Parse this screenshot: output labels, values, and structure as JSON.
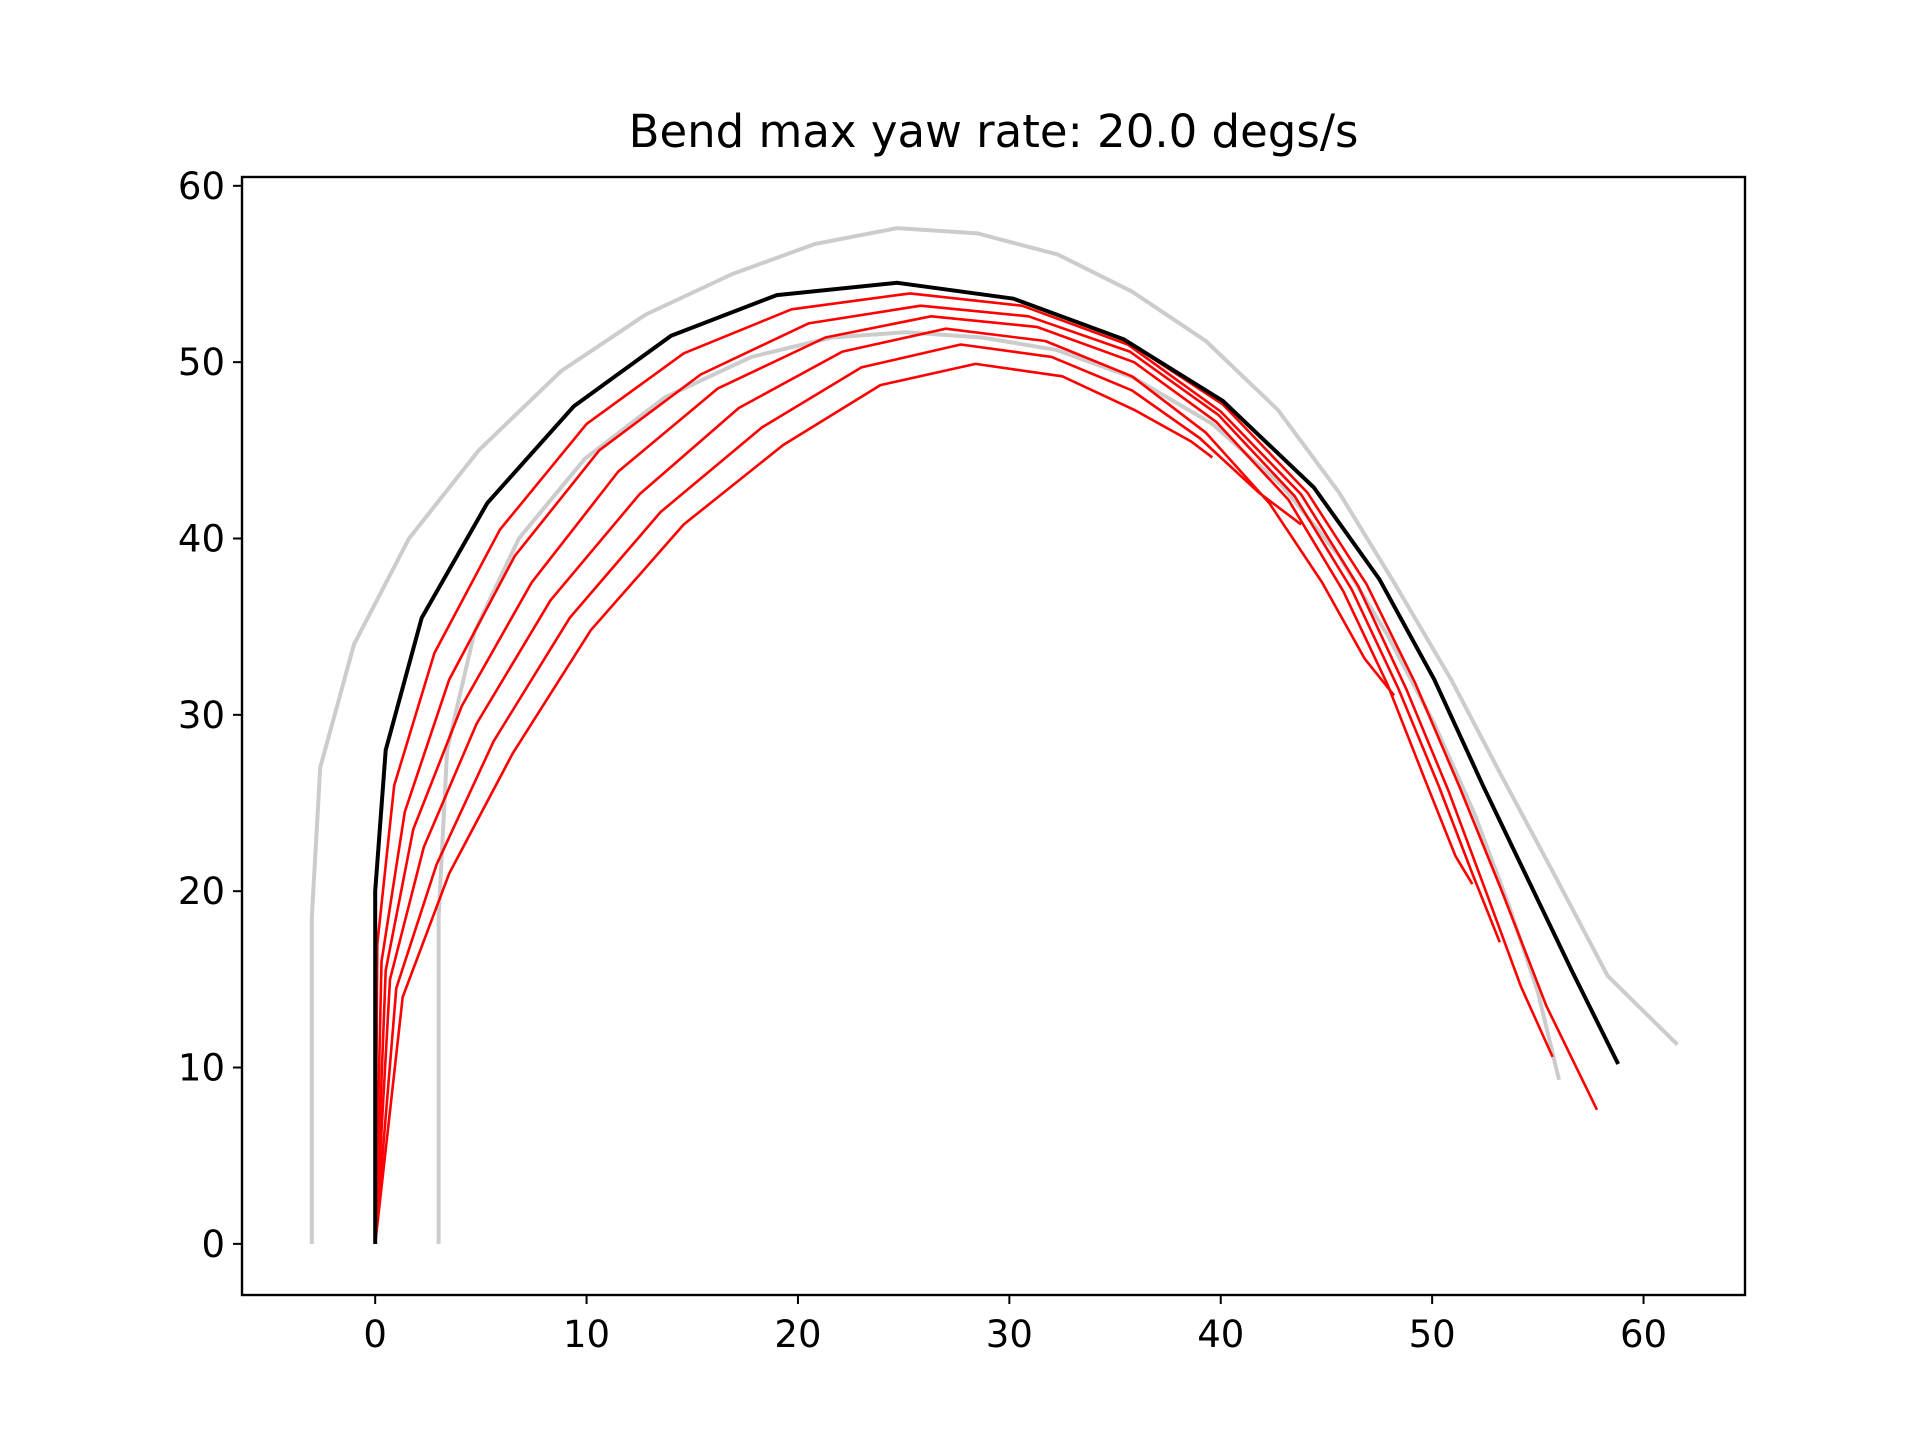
{
  "chart_data": {
    "type": "line",
    "title": "Bend max yaw rate: 20.0 degs/s",
    "xlabel": "",
    "ylabel": "",
    "xlim": [
      -6.3,
      64.8
    ],
    "ylim": [
      -2.9,
      60.5
    ],
    "x_ticks": [
      0,
      10,
      20,
      30,
      40,
      50,
      60
    ],
    "y_ticks": [
      0,
      10,
      20,
      30,
      40,
      50,
      60
    ],
    "grid": false,
    "legend": "none",
    "colors": {
      "boundary": "#cccccc",
      "reference": "#000000",
      "trajectory": "#ff0000",
      "axes": "#000000"
    },
    "series": [
      {
        "role": "boundary",
        "color": "#cccccc",
        "x": [
          -3.0,
          -3.0,
          -2.6,
          -1.0,
          1.6,
          4.9,
          8.8,
          12.8,
          16.9,
          20.8,
          24.7,
          28.5,
          32.3,
          35.8,
          39.3,
          42.7,
          45.6,
          48.2,
          50.9,
          53.3,
          55.8,
          58.3,
          61.6
        ],
        "y": [
          0,
          18.5,
          27.0,
          34.0,
          40.0,
          45.0,
          49.5,
          52.7,
          55.0,
          56.7,
          57.6,
          57.3,
          56.1,
          54.0,
          51.2,
          47.3,
          42.6,
          37.5,
          32.0,
          26.5,
          20.9,
          15.2,
          11.3
        ]
      },
      {
        "role": "boundary",
        "color": "#cccccc",
        "x": [
          3.0,
          3.0,
          3.4,
          4.7,
          6.8,
          9.9,
          13.7,
          17.8,
          21.6,
          25.1,
          28.7,
          32.2,
          35.9,
          39.6,
          42.9,
          45.6,
          47.9,
          50.1,
          52.0,
          53.6,
          55.0,
          56.0
        ],
        "y": [
          0,
          18.5,
          28.0,
          34.7,
          40.0,
          44.5,
          48.0,
          50.3,
          51.4,
          51.7,
          51.4,
          50.7,
          49.1,
          46.5,
          43.0,
          39.0,
          34.5,
          29.5,
          24.4,
          19.3,
          14.3,
          9.3
        ]
      },
      {
        "role": "reference",
        "color": "#000000",
        "x": [
          0.0,
          0.0,
          0.5,
          2.2,
          5.3,
          9.4,
          14.0,
          19.0,
          24.7,
          30.2,
          35.4,
          40.1,
          44.4,
          47.5,
          50.1,
          52.4,
          54.6,
          56.6,
          58.8
        ],
        "y": [
          0,
          20.0,
          28.0,
          35.5,
          42.0,
          47.5,
          51.5,
          53.8,
          54.5,
          53.6,
          51.3,
          47.8,
          42.9,
          37.7,
          32.0,
          26.0,
          20.5,
          15.5,
          10.2
        ]
      },
      {
        "role": "trajectory",
        "color": "#ff0000",
        "x": [
          0.0,
          0.0,
          0.5,
          2.2,
          5.3,
          9.4,
          14.0,
          19.0,
          24.7,
          30.2,
          35.4,
          40.1,
          44.1,
          46.9,
          49.2,
          51.3,
          53.3,
          55.4,
          57.8
        ],
        "y": [
          0,
          20.0,
          28.0,
          35.5,
          42.0,
          47.5,
          51.5,
          53.8,
          54.5,
          53.6,
          51.3,
          47.6,
          42.6,
          37.4,
          31.8,
          25.9,
          20.0,
          13.5,
          7.6
        ]
      },
      {
        "role": "trajectory",
        "color": "#ff0000",
        "x": [
          0.0,
          0.1,
          0.9,
          2.8,
          5.9,
          10.0,
          14.6,
          19.7,
          25.3,
          30.6,
          35.6,
          40.0,
          43.8,
          46.5,
          48.8,
          50.8,
          52.6,
          54.2,
          55.7
        ],
        "y": [
          0,
          17.0,
          26.0,
          33.5,
          40.5,
          46.5,
          50.5,
          53.0,
          53.9,
          53.2,
          51.0,
          47.2,
          42.5,
          37.3,
          31.4,
          25.6,
          19.8,
          14.6,
          10.6
        ]
      },
      {
        "role": "trajectory",
        "color": "#ff0000",
        "x": [
          0.0,
          0.3,
          1.4,
          3.5,
          6.6,
          10.6,
          15.4,
          20.5,
          25.8,
          30.9,
          35.7,
          39.9,
          43.5,
          46.2,
          48.4,
          50.3,
          51.9,
          53.2
        ],
        "y": [
          0,
          16.0,
          24.5,
          32.0,
          39.0,
          45.0,
          49.3,
          52.2,
          53.2,
          52.6,
          50.6,
          47.0,
          42.4,
          37.1,
          31.5,
          26.0,
          21.0,
          17.1
        ]
      },
      {
        "role": "trajectory",
        "color": "#ff0000",
        "x": [
          0.0,
          0.5,
          1.8,
          4.1,
          7.4,
          11.5,
          16.2,
          21.3,
          26.3,
          31.3,
          35.9,
          39.8,
          43.2,
          45.8,
          47.9,
          49.7,
          51.1,
          51.9
        ],
        "y": [
          0,
          15.5,
          23.5,
          30.5,
          37.5,
          43.8,
          48.5,
          51.4,
          52.6,
          52.0,
          50.0,
          46.6,
          42.2,
          37.0,
          31.7,
          26.2,
          22.0,
          20.4
        ]
      },
      {
        "role": "trajectory",
        "color": "#ff0000",
        "x": [
          0.0,
          0.7,
          2.3,
          4.8,
          8.3,
          12.5,
          17.2,
          22.1,
          27.0,
          31.7,
          35.8,
          39.3,
          42.3,
          44.8,
          46.8,
          48.2
        ],
        "y": [
          0,
          15.0,
          22.5,
          29.5,
          36.5,
          42.5,
          47.4,
          50.6,
          51.9,
          51.2,
          49.2,
          46.0,
          42.0,
          37.5,
          33.2,
          31.1
        ]
      },
      {
        "role": "trajectory",
        "color": "#ff0000",
        "x": [
          0.0,
          1.0,
          2.9,
          5.6,
          9.2,
          13.5,
          18.3,
          23.0,
          27.7,
          32.0,
          35.8,
          39.0,
          41.8,
          43.8
        ],
        "y": [
          0,
          14.5,
          21.5,
          28.5,
          35.5,
          41.5,
          46.3,
          49.7,
          51.0,
          50.3,
          48.4,
          45.7,
          42.6,
          40.8
        ]
      },
      {
        "role": "trajectory",
        "color": "#ff0000",
        "x": [
          0.0,
          1.3,
          3.5,
          6.5,
          10.2,
          14.6,
          19.3,
          23.9,
          28.4,
          32.5,
          35.9,
          38.6,
          39.6
        ],
        "y": [
          0,
          14.0,
          21.0,
          27.8,
          34.8,
          40.8,
          45.3,
          48.7,
          49.9,
          49.2,
          47.3,
          45.5,
          44.6
        ]
      }
    ]
  }
}
